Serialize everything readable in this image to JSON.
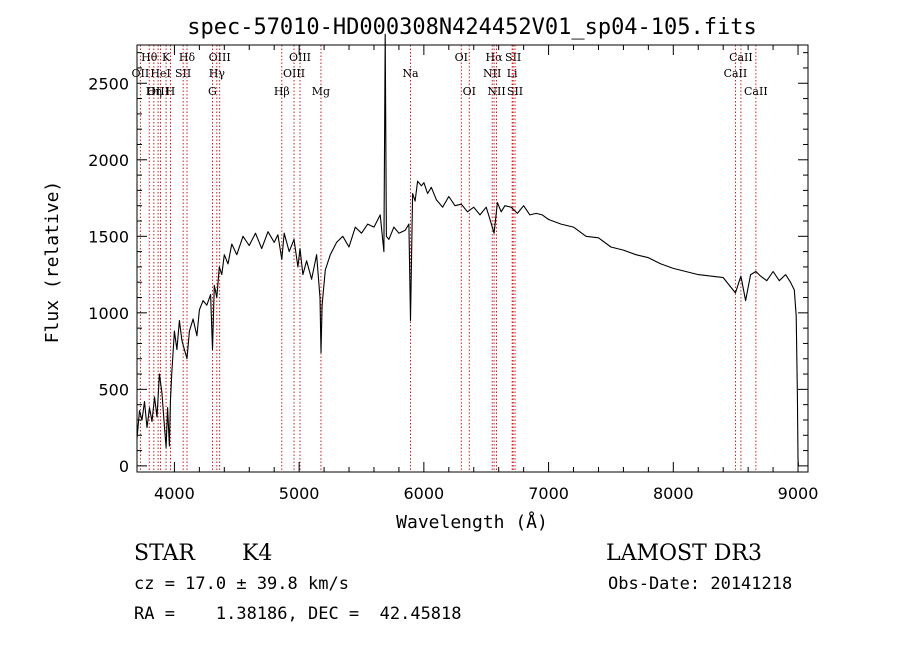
{
  "chart_data": {
    "type": "line",
    "title": "spec-57010-HD000308N424452V01_sp04-105.fits",
    "xlabel": "Wavelength (Å)",
    "ylabel": "Flux (relative)",
    "xlim": [
      3700,
      9080
    ],
    "ylim": [
      -40,
      2750
    ],
    "x_ticks": [
      4000,
      5000,
      6000,
      7000,
      8000,
      9000
    ],
    "y_ticks": [
      0,
      500,
      1000,
      1500,
      2000,
      2500
    ],
    "grid": false,
    "legend": "none",
    "colors": {
      "spectrum": "#000000",
      "line_markers": "#cc0000"
    },
    "series": [
      {
        "x": [
          3700,
          3720,
          3740,
          3760,
          3780,
          3800,
          3820,
          3840,
          3860,
          3880,
          3900,
          3920,
          3933,
          3945,
          3960,
          3968,
          3980,
          4000,
          4020,
          4040,
          4060,
          4080,
          4101,
          4120,
          4150,
          4180,
          4200,
          4230,
          4260,
          4290,
          4305,
          4320,
          4340,
          4360,
          4380,
          4400,
          4430,
          4460,
          4500,
          4550,
          4600,
          4650,
          4700,
          4750,
          4800,
          4830,
          4861,
          4880,
          4920,
          4959,
          4990,
          5007,
          5030,
          5060,
          5100,
          5140,
          5167,
          5175,
          5184,
          5210,
          5250,
          5300,
          5350,
          5400,
          5450,
          5500,
          5550,
          5600,
          5650,
          5680,
          5690,
          5700,
          5720,
          5760,
          5800,
          5850,
          5880,
          5893,
          5910,
          5930,
          5950,
          5980,
          6000,
          6030,
          6060,
          6100,
          6150,
          6200,
          6250,
          6300,
          6350,
          6400,
          6450,
          6500,
          6530,
          6563,
          6590,
          6620,
          6650,
          6700,
          6750,
          6800,
          6850,
          6900,
          6950,
          7000,
          7100,
          7200,
          7300,
          7400,
          7500,
          7600,
          7700,
          7800,
          7900,
          8000,
          8100,
          8200,
          8300,
          8400,
          8498,
          8542,
          8580,
          8620,
          8662,
          8700,
          8750,
          8800,
          8850,
          8900,
          8940,
          8970,
          8985,
          8995,
          9000,
          9003
        ],
        "y": [
          180,
          360,
          300,
          420,
          250,
          380,
          290,
          450,
          320,
          600,
          480,
          260,
          120,
          380,
          130,
          420,
          620,
          880,
          760,
          950,
          820,
          760,
          700,
          880,
          960,
          850,
          1020,
          1080,
          1050,
          1120,
          760,
          1180,
          1100,
          1300,
          1250,
          1380,
          1320,
          1450,
          1380,
          1500,
          1440,
          1520,
          1420,
          1530,
          1460,
          1510,
          1350,
          1520,
          1400,
          1480,
          1300,
          1420,
          1250,
          1340,
          1220,
          1380,
          1100,
          740,
          1050,
          1280,
          1380,
          1460,
          1500,
          1430,
          1560,
          1520,
          1580,
          1560,
          1640,
          1400,
          2820,
          1500,
          1480,
          1560,
          1520,
          1540,
          1580,
          950,
          1780,
          1730,
          1860,
          1830,
          1850,
          1780,
          1820,
          1740,
          1690,
          1760,
          1700,
          1710,
          1660,
          1690,
          1640,
          1690,
          1610,
          1520,
          1720,
          1660,
          1700,
          1690,
          1650,
          1700,
          1640,
          1650,
          1640,
          1610,
          1580,
          1560,
          1500,
          1490,
          1430,
          1410,
          1380,
          1360,
          1320,
          1290,
          1270,
          1250,
          1240,
          1230,
          1130,
          1240,
          1080,
          1250,
          1270,
          1240,
          1210,
          1270,
          1210,
          1250,
          1200,
          1150,
          980,
          460,
          50,
          0
        ]
      }
    ],
    "line_markers": [
      {
        "label": "Hθ",
        "x": 3798,
        "row": 1
      },
      {
        "label": "OII",
        "x": 3727,
        "row": 2
      },
      {
        "label": "OIII",
        "x": 3869,
        "row": 3
      },
      {
        "label": "K",
        "x": 3933,
        "row": 1
      },
      {
        "label": "HeI",
        "x": 3889,
        "row": 2
      },
      {
        "label": "Hη",
        "x": 3835,
        "row": 3
      },
      {
        "label": "Hδ",
        "x": 4101,
        "row": 1
      },
      {
        "label": "SII",
        "x": 4070,
        "row": 2
      },
      {
        "label": "H",
        "x": 3968,
        "row": 3
      },
      {
        "label": "OIII",
        "x": 4363,
        "row": 1
      },
      {
        "label": "Hγ",
        "x": 4340,
        "row": 2
      },
      {
        "label": "G",
        "x": 4305,
        "row": 3
      },
      {
        "label": "OIII",
        "x": 5007,
        "row": 1
      },
      {
        "label": "OIII",
        "x": 4959,
        "row": 2
      },
      {
        "label": "Hβ",
        "x": 4861,
        "row": 3
      },
      {
        "label": "Mg",
        "x": 5175,
        "row": 3
      },
      {
        "label": "Na",
        "x": 5893,
        "row": 2
      },
      {
        "label": "OI",
        "x": 6300,
        "row": 1
      },
      {
        "label": "OI",
        "x": 6364,
        "row": 3
      },
      {
        "label": "Hα",
        "x": 6563,
        "row": 1
      },
      {
        "label": "NII",
        "x": 6548,
        "row": 2
      },
      {
        "label": "NII",
        "x": 6583,
        "row": 3
      },
      {
        "label": "SII",
        "x": 6716,
        "row": 1
      },
      {
        "label": "Li",
        "x": 6708,
        "row": 2
      },
      {
        "label": "SII",
        "x": 6731,
        "row": 3
      },
      {
        "label": "CaII",
        "x": 8542,
        "row": 1
      },
      {
        "label": "CaII",
        "x": 8498,
        "row": 2
      },
      {
        "label": "CaII",
        "x": 8662,
        "row": 3
      }
    ]
  },
  "info": {
    "object_class": "STAR",
    "subclass": "K4",
    "survey": "LAMOST DR3",
    "redshift": "cz = 17.0 ± 39.8 km/s",
    "obs_date": "Obs-Date: 20141218",
    "coords": "RA =    1.38186, DEC =  42.45818"
  }
}
